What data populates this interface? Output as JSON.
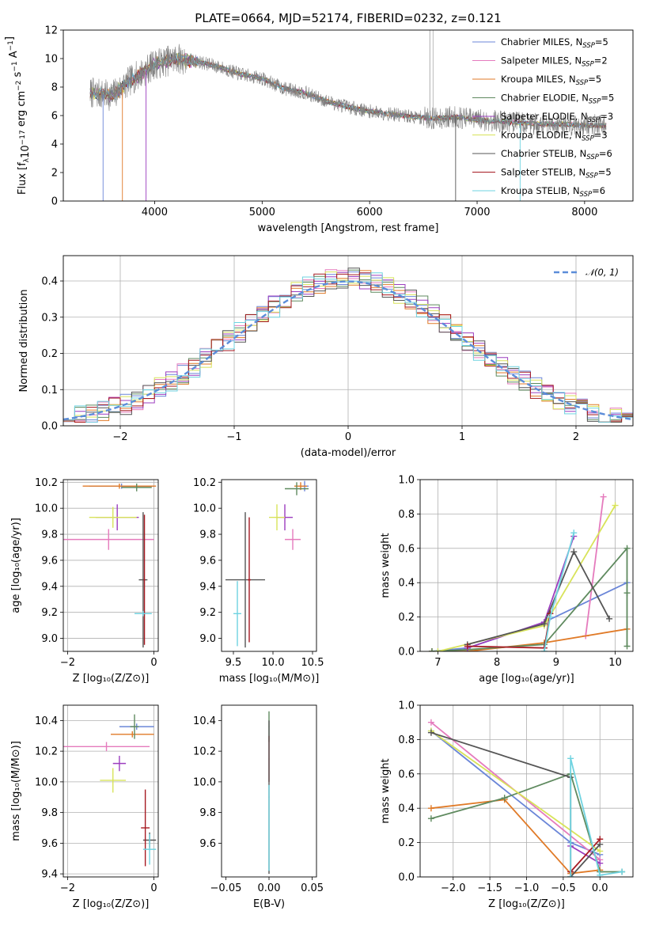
{
  "colors": {
    "Chabrier MILES": "#6b86d8",
    "Salpeter MILES": "#e57bbd",
    "Kroupa MILES": "#e07a27",
    "Chabrier ELODIE": "#5f8a5f",
    "Salpeter ELODIE": "#9c3dbf",
    "Kroupa ELODIE": "#d8e35a",
    "Chabrier STELIB": "#555555",
    "Salpeter STELIB": "#a61a22",
    "Kroupa STELIB": "#6fd3e0"
  },
  "chart_data": [
    {
      "id": "spectrum",
      "type": "line",
      "title": "PLATE=0664, MJD=52174, FIBERID=0232, z=0.121",
      "xlabel": "wavelength [Angstrom, rest frame]",
      "ylabel": "Flux [f_λ10^-17 erg cm^-2 s^-1 A^-1]",
      "xlim": [
        3150,
        8450
      ],
      "ylim": [
        0,
        12
      ],
      "xticks": [
        "4000",
        "5000",
        "6000",
        "7000",
        "8000"
      ],
      "yticks": [
        "0",
        "2",
        "4",
        "6",
        "8",
        "10",
        "12"
      ],
      "legend": [
        {
          "name": "Chabrier MILES",
          "nssp": "=5"
        },
        {
          "name": "Salpeter MILES",
          "nssp": "=2"
        },
        {
          "name": "Kroupa MILES",
          "nssp": "=5"
        },
        {
          "name": "Chabrier ELODIE",
          "nssp": "=5"
        },
        {
          "name": "Salpeter ELODIE",
          "nssp": "=3"
        },
        {
          "name": "Kroupa ELODIE",
          "nssp": "=3"
        },
        {
          "name": "Chabrier STELIB",
          "nssp": "=6"
        },
        {
          "name": "Salpeter STELIB",
          "nssp": "=5"
        },
        {
          "name": "Kroupa STELIB",
          "nssp": "=6"
        }
      ],
      "legend_prefix": "N",
      "legend_sub": "SSP",
      "data_continuum": {
        "x": [
          3400,
          3600,
          3800,
          4000,
          4200,
          4400,
          4600,
          4800,
          5000,
          5200,
          5400,
          5600,
          5800,
          6000,
          6200,
          6400,
          6600,
          6800,
          7000,
          7200,
          7400,
          7600,
          7800,
          8000,
          8200
        ],
        "y": [
          7.6,
          7.4,
          8.6,
          9.6,
          10.0,
          9.8,
          9.4,
          8.9,
          8.6,
          7.9,
          7.6,
          7.0,
          6.6,
          6.3,
          6.1,
          5.9,
          5.8,
          5.9,
          5.7,
          5.6,
          5.5,
          5.4,
          5.4,
          5.3,
          5.3
        ]
      }
    },
    {
      "id": "residuals",
      "type": "bar",
      "xlabel": "(data-model)/error",
      "ylabel": "Normed distribution",
      "xlim": [
        -2.5,
        2.5
      ],
      "ylim": [
        0,
        0.47
      ],
      "xticks": [
        "−2",
        "−1",
        "0",
        "1",
        "2"
      ],
      "yticks": [
        "0.0",
        "0.1",
        "0.2",
        "0.3",
        "0.4"
      ],
      "legend": "𝒩(0, 1)",
      "bin_width": 0.1
    },
    {
      "id": "age_vs_Z",
      "type": "scatter",
      "xlabel": "Z [log₁₀(Z/Z⊙)]",
      "ylabel": "age  [log₁₀(age/yr)]",
      "xlim": [
        -2.1,
        0.1
      ],
      "ylim": [
        8.9,
        10.22
      ],
      "xticks": [
        "−2",
        "0"
      ],
      "yticks": [
        "9.0",
        "9.2",
        "9.4",
        "9.6",
        "9.8",
        "10.0",
        "10.2"
      ],
      "points": [
        {
          "s": "Chabrier MILES",
          "x": -0.75,
          "xe": 0.75,
          "y": 10.17,
          "ye": 0.02
        },
        {
          "s": "Salpeter MILES",
          "x": -1.05,
          "xe": 1.05,
          "y": 9.76,
          "ye": 0.08
        },
        {
          "s": "Kroupa MILES",
          "x": -0.8,
          "xe": 0.85,
          "y": 10.17,
          "ye": 0.02
        },
        {
          "s": "Chabrier ELODIE",
          "x": -0.4,
          "xe": 0.35,
          "y": 10.16,
          "ye": 0.03
        },
        {
          "s": "Salpeter ELODIE",
          "x": -0.85,
          "xe": 0.5,
          "y": 9.93,
          "ye": 0.1
        },
        {
          "s": "Kroupa ELODIE",
          "x": -0.95,
          "xe": 0.55,
          "y": 9.93,
          "ye": 0.08
        },
        {
          "s": "Chabrier STELIB",
          "x": -0.25,
          "xe": 0.1,
          "y": 9.45,
          "ye": 0.52
        },
        {
          "s": "Salpeter STELIB",
          "x": -0.22,
          "xe": 0.02,
          "y": 9.45,
          "ye": 0.5
        },
        {
          "s": "Kroupa STELIB",
          "x": -0.25,
          "xe": 0.2,
          "y": 9.19,
          "ye": 0.02
        }
      ]
    },
    {
      "id": "age_vs_mass",
      "type": "scatter",
      "xlabel": "mass [log₁₀(M/M⊙)]",
      "ylabel": "",
      "xlim": [
        9.35,
        10.55
      ],
      "ylim": [
        8.9,
        10.22
      ],
      "xticks": [
        "9.5",
        "10.0",
        "10.5"
      ],
      "yticks": [
        "9.0",
        "9.2",
        "9.4",
        "9.6",
        "9.8",
        "10.0",
        "10.2"
      ],
      "points": [
        {
          "s": "Chabrier MILES",
          "x": 10.4,
          "xe": 0.05,
          "y": 10.17,
          "ye": 0.04
        },
        {
          "s": "Salpeter MILES",
          "x": 10.25,
          "xe": 0.1,
          "y": 9.76,
          "ye": 0.08
        },
        {
          "s": "Kroupa MILES",
          "x": 10.35,
          "xe": 0.08,
          "y": 10.17,
          "ye": 0.03
        },
        {
          "s": "Chabrier ELODIE",
          "x": 10.3,
          "xe": 0.15,
          "y": 10.15,
          "ye": 0.05
        },
        {
          "s": "Salpeter ELODIE",
          "x": 10.15,
          "xe": 0.1,
          "y": 9.93,
          "ye": 0.1
        },
        {
          "s": "Kroupa ELODIE",
          "x": 10.05,
          "xe": 0.1,
          "y": 9.93,
          "ye": 0.1
        },
        {
          "s": "Chabrier STELIB",
          "x": 9.65,
          "xe": 0.25,
          "y": 9.45,
          "ye": 0.52
        },
        {
          "s": "Salpeter STELIB",
          "x": 9.7,
          "xe": 0.02,
          "y": 9.45,
          "ye": 0.48
        },
        {
          "s": "Kroupa STELIB",
          "x": 9.55,
          "xe": 0.05,
          "y": 9.19,
          "ye": 0.25
        }
      ]
    },
    {
      "id": "weight_vs_age",
      "type": "line",
      "xlabel": "age  [log₁₀(age/yr)]",
      "ylabel": "mass weight",
      "xlim": [
        6.7,
        10.3
      ],
      "ylim": [
        0,
        1.0
      ],
      "xticks": [
        "7",
        "8",
        "9",
        "10"
      ],
      "yticks": [
        "0.0",
        "0.2",
        "0.4",
        "0.6",
        "0.8",
        "1.0"
      ],
      "series": [
        {
          "s": "Chabrier MILES",
          "x": [
            6.9,
            7.5,
            8.8,
            10.2
          ],
          "y": [
            0.0,
            0.02,
            0.17,
            0.4
          ]
        },
        {
          "s": "Salpeter MILES",
          "x": [
            9.5,
            9.8
          ],
          "y": [
            0.09,
            0.9
          ]
        },
        {
          "s": "Kroupa MILES",
          "x": [
            6.9,
            7.5,
            8.8,
            10.2
          ],
          "y": [
            0.0,
            0.0,
            0.05,
            0.13
          ]
        },
        {
          "s": "Chabrier ELODIE",
          "x": [
            6.9,
            7.5,
            8.8,
            10.2,
            10.2,
            10.2
          ],
          "y": [
            0.0,
            0.01,
            0.04,
            0.6,
            0.03,
            0.34
          ]
        },
        {
          "s": "Salpeter ELODIE",
          "x": [
            7.5,
            8.8,
            9.3
          ],
          "y": [
            0.02,
            0.17,
            0.67
          ]
        },
        {
          "s": "Kroupa ELODIE",
          "x": [
            7.0,
            8.8,
            10.0
          ],
          "y": [
            0.0,
            0.15,
            0.85
          ]
        },
        {
          "s": "Chabrier STELIB",
          "x": [
            7.5,
            8.8,
            9.3,
            9.9
          ],
          "y": [
            0.04,
            0.16,
            0.58,
            0.19
          ]
        },
        {
          "s": "Salpeter STELIB",
          "x": [
            7.5,
            8.8,
            8.9
          ],
          "y": [
            0.03,
            0.02,
            0.22
          ]
        },
        {
          "s": "Kroupa STELIB",
          "x": [
            8.8,
            8.9,
            9.3
          ],
          "y": [
            0.0,
            0.2,
            0.69
          ]
        }
      ]
    },
    {
      "id": "mass_vs_Z",
      "type": "scatter",
      "xlabel": "Z [log₁₀(Z/Z⊙)]",
      "ylabel": "mass [log₁₀(M/M⊙)]",
      "xlim": [
        -2.1,
        0.1
      ],
      "ylim": [
        9.38,
        10.5
      ],
      "xticks": [
        "−2",
        "0"
      ],
      "yticks": [
        "9.4",
        "9.6",
        "9.8",
        "10.0",
        "10.2",
        "10.4"
      ],
      "points": [
        {
          "s": "Chabrier MILES",
          "x": -0.4,
          "xe": 0.4,
          "y": 10.36,
          "ye": 0.02
        },
        {
          "s": "Salpeter MILES",
          "x": -1.1,
          "xe": 1.0,
          "y": 10.23,
          "ye": 0.03
        },
        {
          "s": "Kroupa MILES",
          "x": -0.5,
          "xe": 0.5,
          "y": 10.31,
          "ye": 0.02
        },
        {
          "s": "Chabrier ELODIE",
          "x": -0.45,
          "xe": 0.1,
          "y": 10.36,
          "ye": 0.08
        },
        {
          "s": "Salpeter ELODIE",
          "x": -0.8,
          "xe": 0.15,
          "y": 10.12,
          "ye": 0.05
        },
        {
          "s": "Kroupa ELODIE",
          "x": -0.95,
          "xe": 0.3,
          "y": 10.01,
          "ye": 0.08
        },
        {
          "s": "Chabrier STELIB",
          "x": -0.1,
          "xe": 0.15,
          "y": 9.62,
          "ye": 0.05
        },
        {
          "s": "Salpeter STELIB",
          "x": -0.2,
          "xe": 0.1,
          "y": 9.7,
          "ye": 0.25
        },
        {
          "s": "Kroupa STELIB",
          "x": -0.1,
          "xe": 0.15,
          "y": 9.56,
          "ye": 0.1
        }
      ]
    },
    {
      "id": "mass_vs_EBV",
      "type": "scatter",
      "xlabel": "E(B-V)",
      "ylabel": "",
      "xlim": [
        -0.055,
        0.055
      ],
      "ylim": [
        9.38,
        10.5
      ],
      "xticks": [
        "−0.05",
        "0.00",
        "0.05"
      ],
      "yticks": [
        "9.6",
        "9.8",
        "10.0",
        "10.2",
        "10.4"
      ],
      "points": [
        {
          "s": "Chabrier ELODIE",
          "x": 0.0,
          "xe": 0.0005,
          "y": 10.36,
          "ye": 0.1
        },
        {
          "s": "Salpeter STELIB",
          "x": 0.0,
          "xe": 0.0005,
          "y": 10.15,
          "ye": 0.15
        },
        {
          "s": "Chabrier STELIB",
          "x": 0.0,
          "xe": 0.0005,
          "y": 9.9,
          "ye": 0.5
        },
        {
          "s": "Kroupa STELIB",
          "x": 0.0,
          "xe": 0.0005,
          "y": 9.7,
          "ye": 0.28
        }
      ]
    },
    {
      "id": "weight_vs_Z",
      "type": "line",
      "xlabel": "Z [log₁₀(Z/Z⊙)]",
      "ylabel": "mass weight",
      "xlim": [
        -2.45,
        0.45
      ],
      "ylim": [
        0,
        1.0
      ],
      "xticks": [
        "−2.0",
        "−1.5",
        "−1.0",
        "−0.5",
        "0.0"
      ],
      "yticks": [
        "0.0",
        "0.2",
        "0.4",
        "0.6",
        "0.8",
        "1.0"
      ],
      "series": [
        {
          "s": "Chabrier MILES",
          "x": [
            -2.3,
            -0.4,
            0.0
          ],
          "y": [
            0.85,
            0.2,
            0.13
          ]
        },
        {
          "s": "Salpeter MILES",
          "x": [
            -2.3,
            0.0
          ],
          "y": [
            0.9,
            0.1
          ]
        },
        {
          "s": "Kroupa MILES",
          "x": [
            -2.3,
            -1.3,
            -0.4,
            0.0
          ],
          "y": [
            0.4,
            0.45,
            0.02,
            0.04
          ]
        },
        {
          "s": "Chabrier ELODIE",
          "x": [
            -2.3,
            -1.3,
            -0.4,
            0.0,
            0.3
          ],
          "y": [
            0.34,
            0.46,
            0.6,
            0.03,
            0.03
          ]
        },
        {
          "s": "Salpeter ELODIE",
          "x": [
            -0.4,
            0.0
          ],
          "y": [
            0.18,
            0.08
          ]
        },
        {
          "s": "Kroupa ELODIE",
          "x": [
            -2.3,
            0.0
          ],
          "y": [
            0.85,
            0.15
          ]
        },
        {
          "s": "Chabrier STELIB",
          "x": [
            -2.3,
            -0.4,
            -0.4,
            0.0
          ],
          "y": [
            0.84,
            0.58,
            0.0,
            0.19
          ]
        },
        {
          "s": "Salpeter STELIB",
          "x": [
            -0.4,
            0.0
          ],
          "y": [
            0.03,
            0.22
          ]
        },
        {
          "s": "Kroupa STELIB",
          "x": [
            -0.4,
            -0.4,
            0.0,
            0.3
          ],
          "y": [
            0.0,
            0.69,
            0.01,
            0.03
          ]
        }
      ]
    }
  ]
}
